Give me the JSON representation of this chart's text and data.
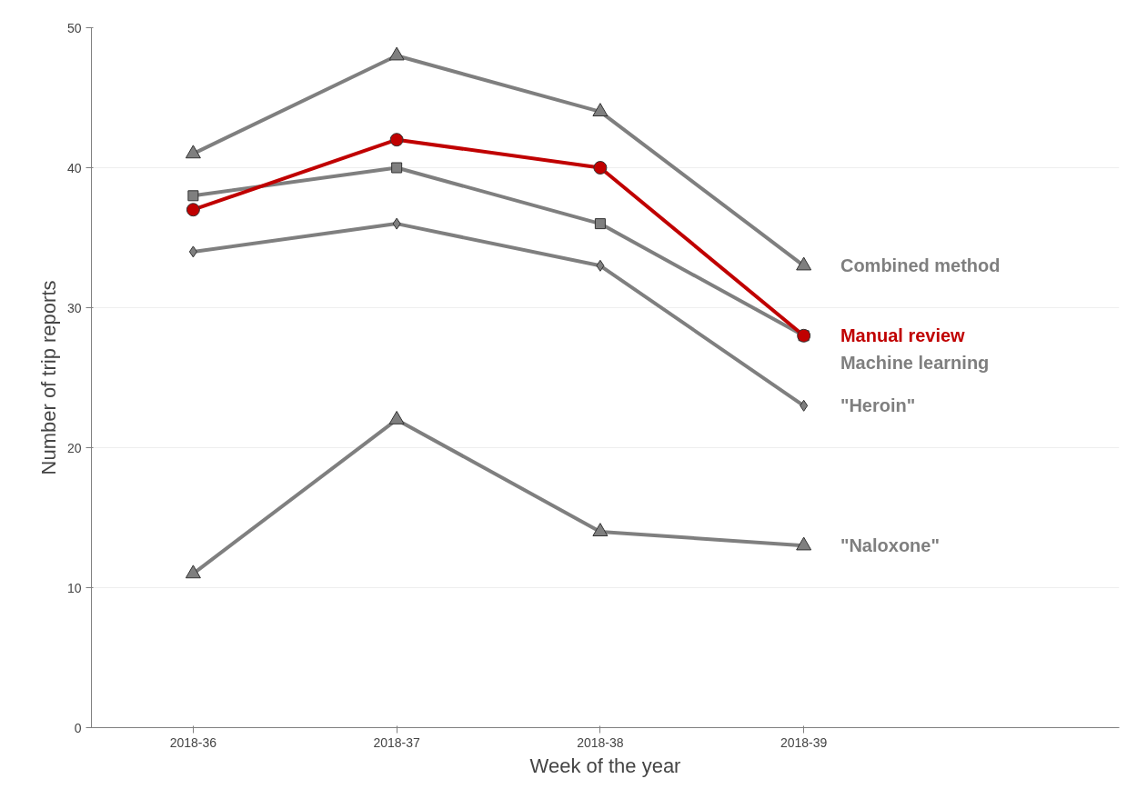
{
  "chart_data": {
    "type": "line",
    "xlabel": "Week of the year",
    "ylabel": "Number of trip reports",
    "categories": [
      "2018-36",
      "2018-37",
      "2018-38",
      "2018-39"
    ],
    "series": [
      {
        "name": "Combined method",
        "color": "#7f7f7f",
        "marker": "triangle",
        "values": [
          41,
          48,
          44,
          33
        ]
      },
      {
        "name": "Manual review",
        "color": "#c00000",
        "marker": "circle",
        "values": [
          37,
          42,
          40,
          28
        ]
      },
      {
        "name": "Machine learning",
        "color": "#7f7f7f",
        "marker": "square",
        "values": [
          38,
          40,
          36,
          28
        ]
      },
      {
        "name": "\"Heroin\"",
        "color": "#7f7f7f",
        "marker": "diamond",
        "values": [
          34,
          36,
          33,
          23
        ]
      },
      {
        "name": "\"Naloxone\"",
        "color": "#7f7f7f",
        "marker": "triangle",
        "values": [
          11,
          22,
          14,
          13
        ]
      }
    ],
    "ylim": [
      0,
      50
    ],
    "yticks": [
      0,
      10,
      20,
      30,
      40,
      50
    ],
    "grid": "y",
    "line_style": "solid"
  }
}
